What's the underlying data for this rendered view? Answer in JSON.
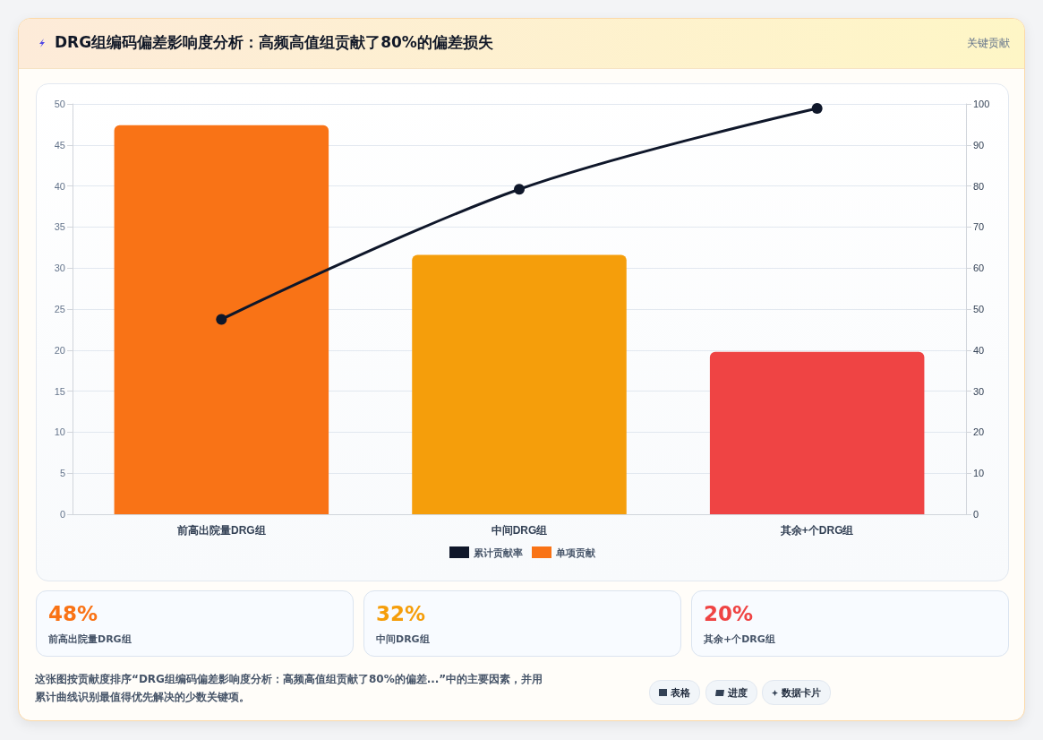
{
  "chart_data": {
    "type": "bar",
    "title": "DRG组编码偏差影响度分析：高频高值组贡献了80%的偏差损失",
    "categories": [
      "前高出院量DRG组",
      "中间DRG组",
      "其余+个DRG组"
    ],
    "series": [
      {
        "name": "累计贡献率",
        "type": "line",
        "axis": "y2",
        "color": "#0f172a",
        "values": [
          47.5,
          79.2,
          98.9
        ]
      },
      {
        "name": "单项贡献",
        "color": "#f97316",
        "colors": [
          "#f97316",
          "#f59e0b",
          "#ef4444"
        ],
        "values": [
          47.4,
          31.6,
          19.8
        ]
      }
    ],
    "ylim": [
      0,
      50
    ],
    "yticks": [
      0,
      5,
      10,
      15,
      20,
      25,
      30,
      35,
      40,
      45,
      50
    ],
    "y2lim": [
      0,
      100
    ],
    "y2ticks": [
      0,
      10,
      20,
      30,
      40,
      50,
      60,
      70,
      80,
      90,
      100
    ],
    "grid": true,
    "legend": "bottom",
    "marker": "circle",
    "line_style": "solid",
    "annotations": [
      "关键贡献",
      "48%",
      "32%",
      "20%",
      "这张图按贡献度排序“DRG组编码偏差影响度分析：高频高值组贡献了80%的偏差...”中的主要因素，并用累计曲线识别最值得优先解决的少数关键项。",
      "表格",
      "进度",
      "数据卡片"
    ]
  }
}
